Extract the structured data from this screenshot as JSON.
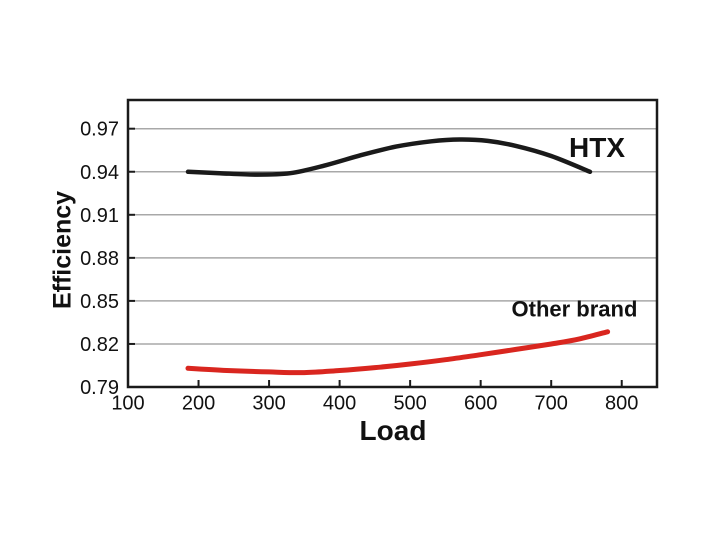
{
  "page": {
    "background": "#ffffff"
  },
  "chart_data": {
    "type": "line",
    "title": "",
    "xlabel": "Load",
    "ylabel": "Efficiency",
    "xlim": [
      100,
      850
    ],
    "ylim": [
      0.79,
      0.99
    ],
    "x_ticks": [
      100,
      200,
      300,
      400,
      500,
      600,
      700,
      800
    ],
    "y_ticks": [
      0.79,
      0.82,
      0.85,
      0.88,
      0.91,
      0.94,
      0.97
    ],
    "grid": "horizontal",
    "grid_color": "#a8a8a8",
    "frame_color": "#1a1a1a",
    "tick_label_color": "#111111",
    "tick_label_size": 20,
    "legend_position": "inline-annotations",
    "series": [
      {
        "name": "HTX",
        "color": "#1a1a1a",
        "stroke_width": 4.5,
        "points": [
          [
            185,
            0.94
          ],
          [
            230,
            0.939
          ],
          [
            280,
            0.938
          ],
          [
            330,
            0.939
          ],
          [
            380,
            0.9445
          ],
          [
            430,
            0.9515
          ],
          [
            480,
            0.9575
          ],
          [
            530,
            0.9612
          ],
          [
            570,
            0.9625
          ],
          [
            610,
            0.9615
          ],
          [
            650,
            0.958
          ],
          [
            700,
            0.951
          ],
          [
            755,
            0.94
          ]
        ]
      },
      {
        "name": "Other brand",
        "color": "#d9261f",
        "stroke_width": 5,
        "points": [
          [
            185,
            0.803
          ],
          [
            240,
            0.8015
          ],
          [
            300,
            0.8005
          ],
          [
            350,
            0.8
          ],
          [
            400,
            0.8015
          ],
          [
            450,
            0.8035
          ],
          [
            500,
            0.806
          ],
          [
            550,
            0.809
          ],
          [
            600,
            0.8125
          ],
          [
            650,
            0.8162
          ],
          [
            700,
            0.82
          ],
          [
            740,
            0.8235
          ],
          [
            780,
            0.8285
          ]
        ]
      }
    ],
    "annotations": [
      {
        "text": "HTX",
        "x": 765,
        "y": 0.957,
        "font_size": 28,
        "color": "#111111"
      },
      {
        "text": "Other brand",
        "x": 733,
        "y": 0.8445,
        "font_size": 22,
        "color": "#111111"
      }
    ]
  }
}
